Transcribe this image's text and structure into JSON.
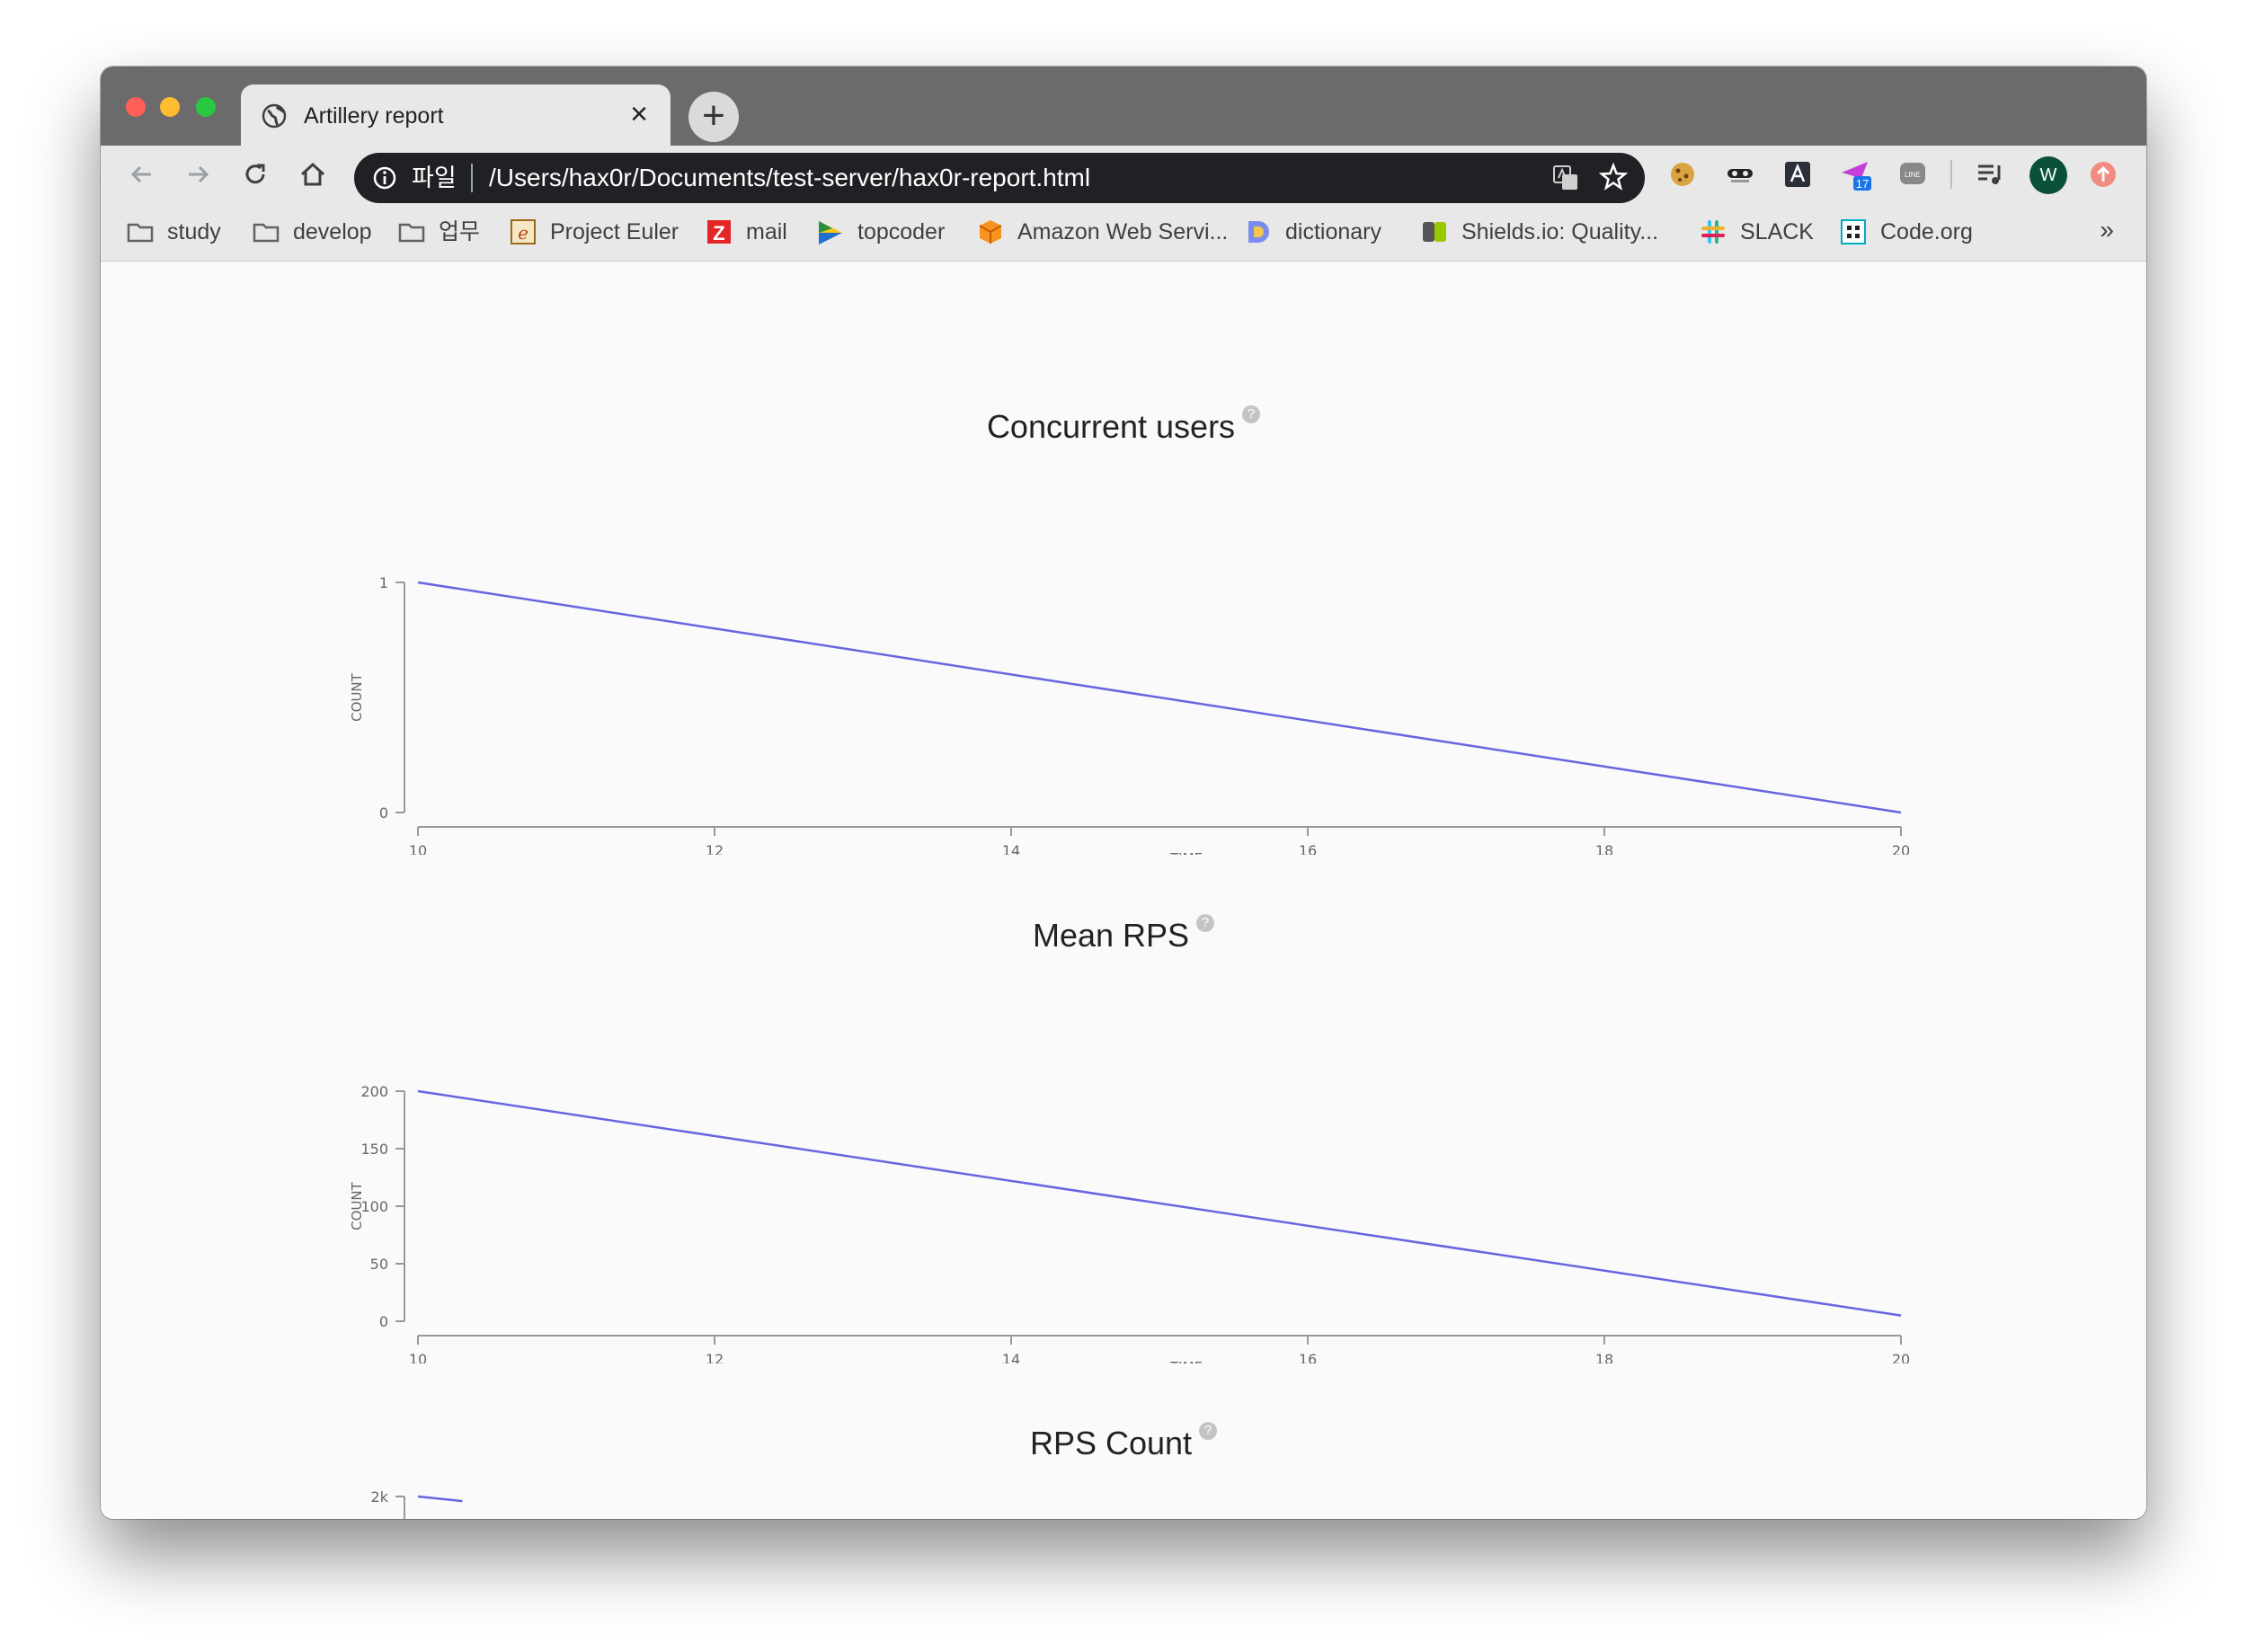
{
  "browser": {
    "tab": {
      "title": "Artillery report"
    },
    "omnibox": {
      "scheme_label": "파일",
      "url": "/Users/hax0r/Documents/test-server/hax0r-report.html"
    },
    "profile": {
      "initial": "W"
    },
    "extensions": {
      "badge_count": "17"
    },
    "bookmarks": [
      {
        "label": "study",
        "icon": "folder-icon"
      },
      {
        "label": "develop",
        "icon": "folder-icon"
      },
      {
        "label": "업무",
        "icon": "folder-icon"
      },
      {
        "label": "Project Euler",
        "icon": "project-euler-icon"
      },
      {
        "label": "mail",
        "icon": "zoho-mail-icon"
      },
      {
        "label": "topcoder",
        "icon": "topcoder-icon"
      },
      {
        "label": "Amazon Web Servi...",
        "icon": "aws-cube-icon"
      },
      {
        "label": "dictionary",
        "icon": "dictionary-icon"
      },
      {
        "label": "Shields.io: Quality...",
        "icon": "shields-icon"
      },
      {
        "label": "SLACK",
        "icon": "slack-icon"
      },
      {
        "label": "Code.org",
        "icon": "code-org-icon"
      }
    ],
    "overflow_label": "»"
  },
  "colors": {
    "series": "#6666e0",
    "axis": "#999999"
  },
  "chart_data": [
    {
      "type": "line",
      "title": "Concurrent users",
      "xlabel": "TIME",
      "ylabel": "COUNT",
      "x_ticks": [
        "10",
        "12",
        "14",
        "16",
        "18",
        "20"
      ],
      "y_ticks": [
        "0",
        "1"
      ],
      "xlim": [
        10,
        20
      ],
      "ylim": [
        0,
        1
      ],
      "series": [
        {
          "x": [
            10,
            20
          ],
          "y": [
            1,
            0
          ]
        }
      ]
    },
    {
      "type": "line",
      "title": "Mean RPS",
      "xlabel": "TIME",
      "ylabel": "COUNT",
      "x_ticks": [
        "10",
        "12",
        "14",
        "16",
        "18",
        "20"
      ],
      "y_ticks": [
        "0",
        "50",
        "100",
        "150",
        "200"
      ],
      "xlim": [
        10,
        20
      ],
      "ylim": [
        0,
        200
      ],
      "series": [
        {
          "x": [
            10,
            20
          ],
          "y": [
            200,
            5
          ]
        }
      ]
    },
    {
      "type": "line",
      "title": "RPS Count",
      "xlabel": "",
      "ylabel": "",
      "x_ticks": [],
      "y_ticks": [
        "2k"
      ],
      "ylim": [
        0,
        2000
      ],
      "series": [
        {
          "x": [
            10,
            10.3
          ],
          "y": [
            2000,
            1960
          ]
        }
      ]
    }
  ]
}
